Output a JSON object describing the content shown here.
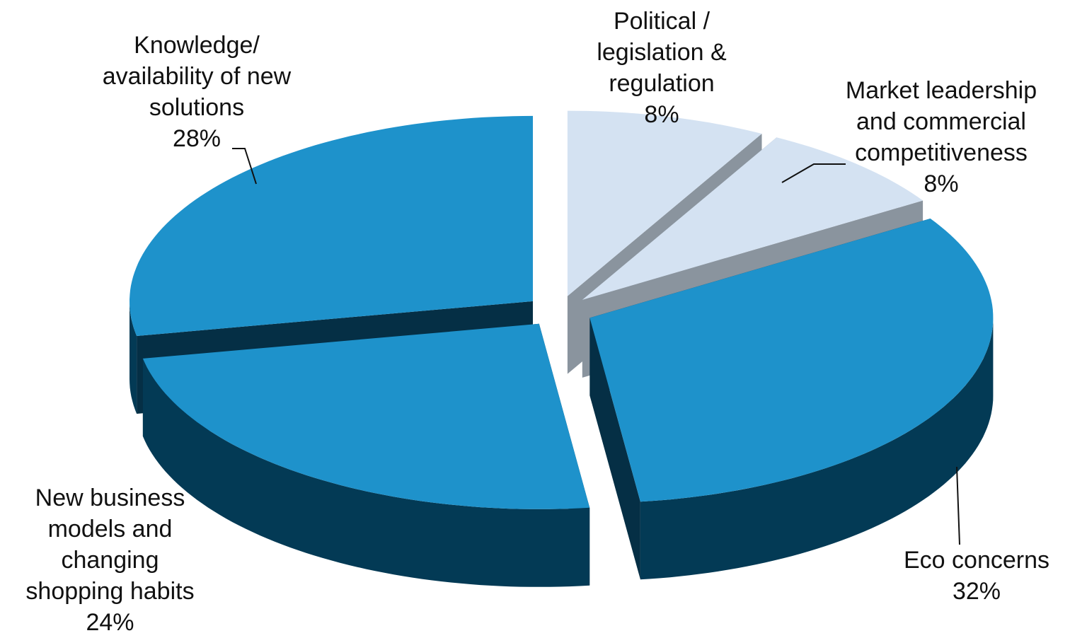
{
  "chart_data": {
    "type": "pie",
    "categories": [
      "Political / legislation & regulation",
      "Market leadership and commercial competitiveness",
      "Eco concerns",
      "New business models and changing shopping habits",
      "Knowledge/ availability of new solutions"
    ],
    "values": [
      8,
      8,
      32,
      24,
      28
    ],
    "value_labels": [
      "8%",
      "8%",
      "32%",
      "24%",
      "28%"
    ],
    "colors": [
      "#d4e2f2",
      "#d4e2f2",
      "#1e92cb",
      "#1e92cb",
      "#1e92cb"
    ]
  }
}
